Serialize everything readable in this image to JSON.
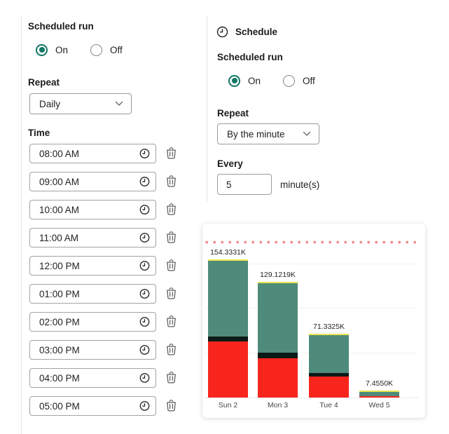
{
  "left_panel": {
    "scheduled_run_label": "Scheduled run",
    "on_label": "On",
    "off_label": "Off",
    "on_selected": true,
    "repeat_label": "Repeat",
    "repeat_value": "Daily",
    "time_label": "Time",
    "times": [
      "08:00 AM",
      "09:00 AM",
      "10:00 AM",
      "11:00 AM",
      "12:00 PM",
      "01:00 PM",
      "02:00 PM",
      "03:00 PM",
      "04:00 PM",
      "05:00 PM"
    ]
  },
  "right_panel": {
    "header": "Schedule",
    "scheduled_run_label": "Scheduled run",
    "on_label": "On",
    "off_label": "Off",
    "on_selected": true,
    "repeat_label": "Repeat",
    "repeat_value": "By the minute",
    "every_label": "Every",
    "every_value": "5",
    "every_unit": "minute(s)"
  },
  "icons": {
    "header": "clock-icon",
    "time_field": "clock-icon",
    "delete": "trash-icon",
    "dropdown": "chevron-down-icon"
  },
  "colors": {
    "accent_teal": "#117865",
    "field_border": "#9d9b99",
    "divider": "#e4e4e4",
    "chart_green": "#4f8b7a",
    "chart_black": "#0c1a17",
    "chart_red": "#f8251d",
    "chart_yellow_strip": "#e9e44f",
    "target_dots": "#f28989"
  },
  "chart_data": {
    "type": "bar",
    "stacked": true,
    "categories": [
      "Sun 2",
      "Mon 3",
      "Tue 4",
      "Wed 5"
    ],
    "totals": [
      154.3331,
      129.1219,
      71.3325,
      7.455
    ],
    "total_labels": [
      "154.3331K",
      "129.1219K",
      "71.3325K",
      "7.4550K"
    ],
    "series": [
      {
        "name": "red-segment",
        "color": "#f8251d",
        "values": [
          62.7,
          44.1,
          23.5,
          1.5
        ]
      },
      {
        "name": "black-segment",
        "color": "#0c1a17",
        "values": [
          5.5,
          6.3,
          3.9,
          0.2
        ]
      },
      {
        "name": "green-segment",
        "color": "#4f8b7a",
        "values": [
          86.1331,
          78.7219,
          43.9325,
          5.755
        ]
      }
    ],
    "ylabel": "",
    "xlabel": "",
    "ylim": [
      0,
      175
    ],
    "gridline_values": [
      50,
      100,
      150
    ],
    "target_line_value": 174,
    "grid": "dotted",
    "legend": "none",
    "data_labels": "totals above bars"
  }
}
